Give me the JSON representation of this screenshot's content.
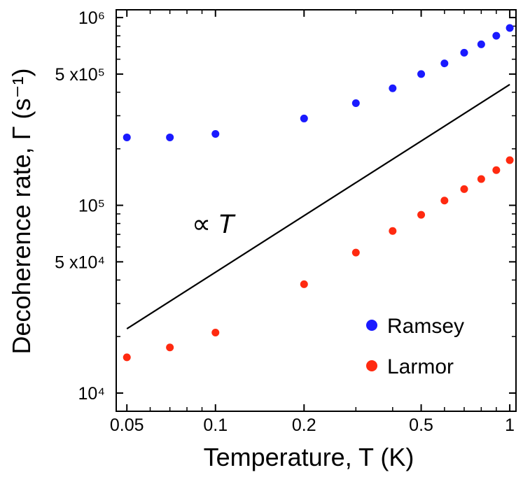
{
  "chart_data": {
    "type": "scatter",
    "title": "",
    "xlabel": "Temperature,  T (K)",
    "ylabel": "Decoherence rate,  Γ (s⁻¹)",
    "xscale": "log",
    "yscale": "log",
    "xlim": [
      0.046,
      1.05
    ],
    "ylim": [
      8000,
      1100000
    ],
    "xticks": [
      {
        "value": 0.05,
        "label": "0.05"
      },
      {
        "value": 0.1,
        "label": "0.1"
      },
      {
        "value": 0.2,
        "label": "0.2"
      },
      {
        "value": 0.5,
        "label": "0.5"
      },
      {
        "value": 1,
        "label": "1"
      }
    ],
    "yticks": [
      {
        "value": 10000,
        "label": "10⁴"
      },
      {
        "value": 50000,
        "label": "5 x10⁴"
      },
      {
        "value": 100000,
        "label": "10⁵"
      },
      {
        "value": 500000,
        "label": "5 x10⁵"
      },
      {
        "value": 1000000,
        "label": "10⁶"
      }
    ],
    "series": [
      {
        "name": "Ramsey",
        "color": "#1a1aff",
        "x": [
          0.05,
          0.07,
          0.1,
          0.2,
          0.3,
          0.4,
          0.5,
          0.6,
          0.7,
          0.8,
          0.9,
          1.0
        ],
        "y": [
          230000,
          230000,
          240000,
          290000,
          350000,
          420000,
          500000,
          570000,
          650000,
          720000,
          800000,
          880000
        ]
      },
      {
        "name": "Larmor",
        "color": "#ff2a10",
        "x": [
          0.05,
          0.07,
          0.1,
          0.2,
          0.3,
          0.4,
          0.5,
          0.6,
          0.7,
          0.8,
          0.9,
          1.0
        ],
        "y": [
          15500,
          17500,
          21000,
          38000,
          56000,
          73000,
          89000,
          106000,
          122000,
          138000,
          154000,
          174000
        ]
      }
    ],
    "reference_line": {
      "label": "∝",
      "label_var": "T",
      "x": [
        0.05,
        1.0
      ],
      "y": [
        22000,
        440000
      ]
    },
    "legend": {
      "position": "bottom-right",
      "entries": [
        "Ramsey",
        "Larmor"
      ]
    }
  }
}
